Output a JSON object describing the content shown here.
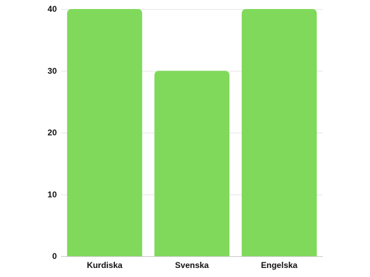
{
  "chart_data": {
    "type": "bar",
    "categories": [
      "Kurdiska",
      "Svenska",
      "Engelska"
    ],
    "values": [
      40,
      30,
      40
    ],
    "yticks": [
      0,
      10,
      20,
      30,
      40
    ],
    "ylim": [
      0,
      40
    ],
    "grid": true,
    "bar_color": "#80d95b",
    "title": "",
    "xlabel": "",
    "ylabel": ""
  }
}
